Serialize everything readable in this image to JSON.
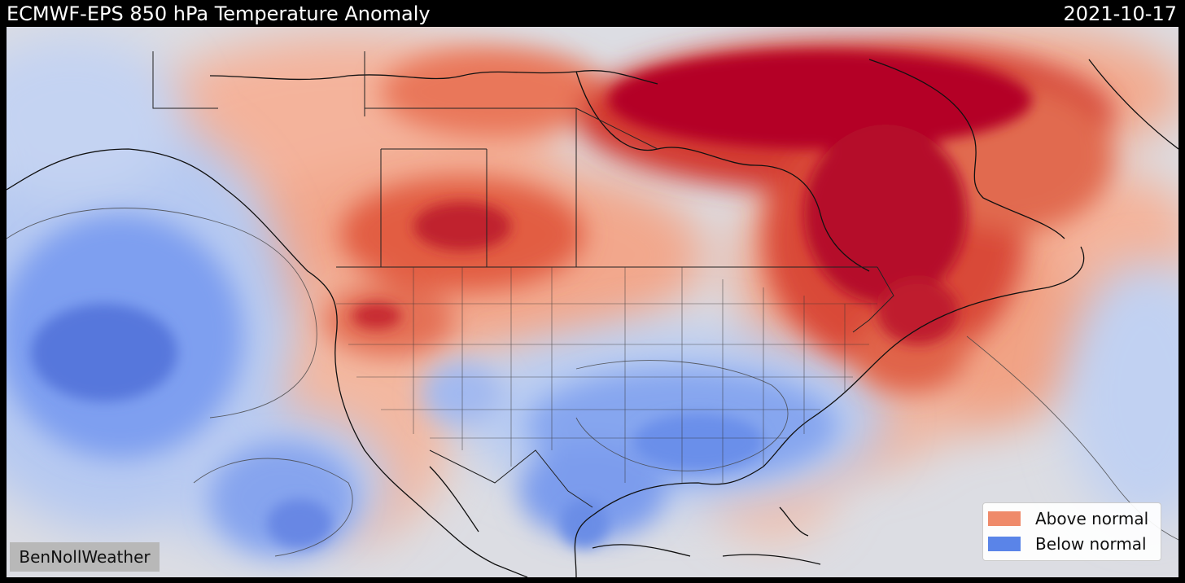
{
  "header": {
    "title": "ECMWF-EPS 850 hPa Temperature Anomaly",
    "date": "2021-10-17"
  },
  "legend": {
    "items": [
      {
        "label": "Above normal",
        "color": "#ef8a6a"
      },
      {
        "label": "Below normal",
        "color": "#5a84e8"
      }
    ]
  },
  "watermark": "BenNollWeather",
  "colors": {
    "background_neutral": "#dcdde3",
    "warm_strong": "#b40426",
    "warm_mid": "#e2593f",
    "warm_light": "#f6b49a",
    "cold_light": "#b9cdf2",
    "cold_mid": "#7a9ef0",
    "cold_strong": "#4a6fdc",
    "frame": "#000000"
  }
}
